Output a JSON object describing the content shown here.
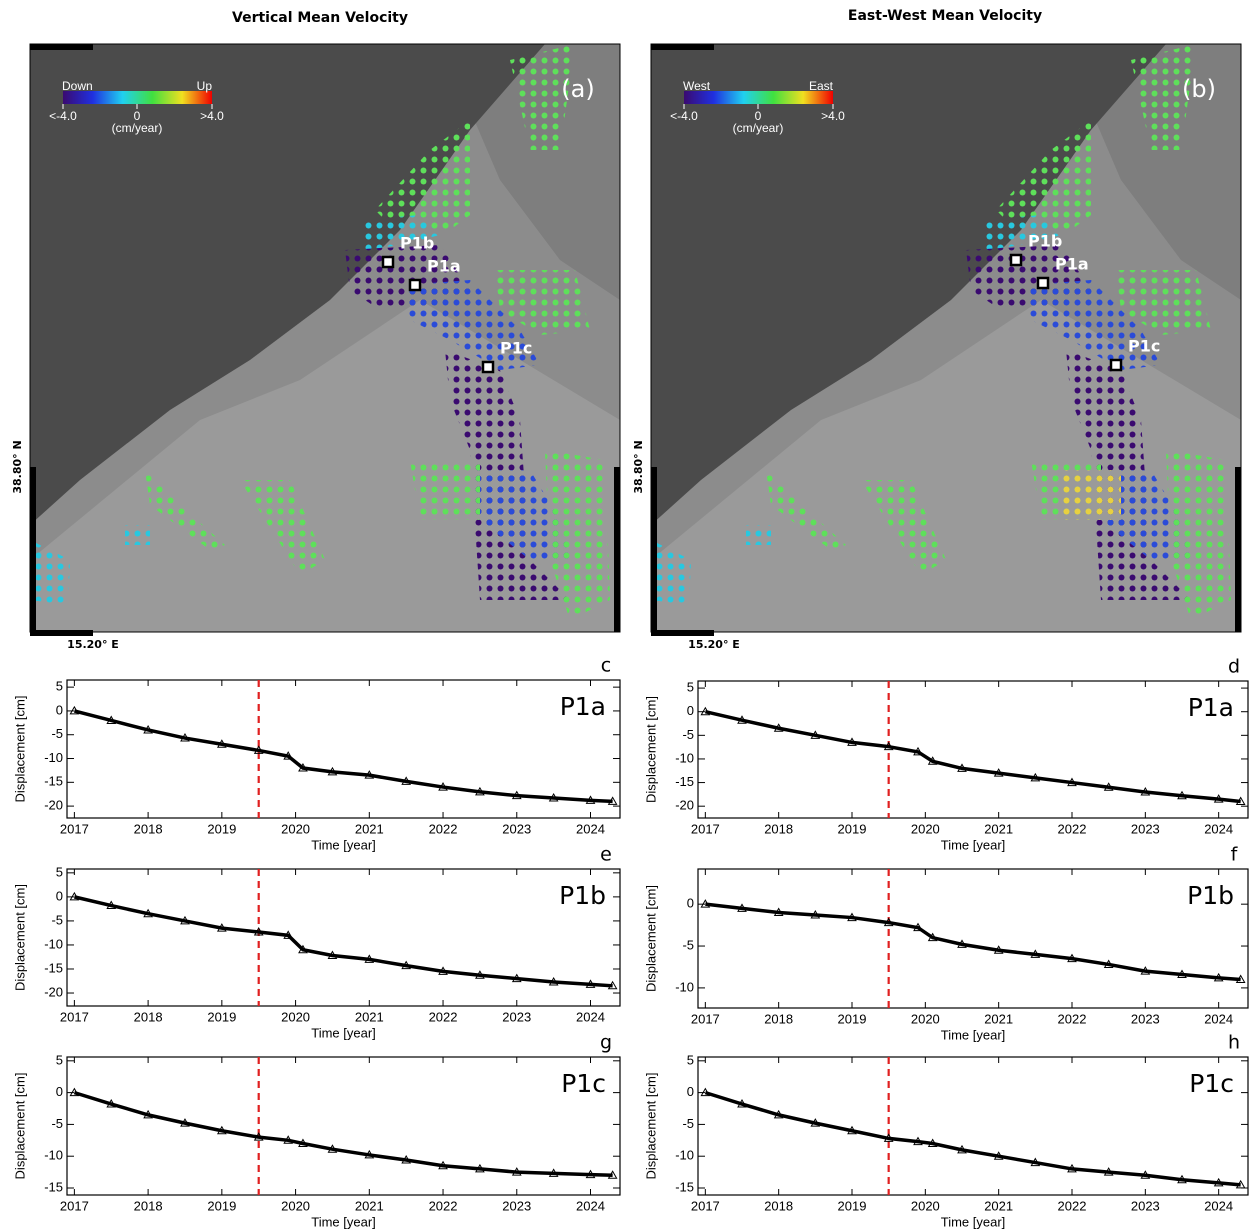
{
  "chart_data": [
    {
      "type": "map",
      "title": "Vertical Mean Velocity",
      "panel": "(a)",
      "colorbar": {
        "low": "Down",
        "high": "Up",
        "ticks": [
          "<-4.0",
          "0",
          ">4.0"
        ],
        "unit": "(cm/year)",
        "colors": [
          "#3a0a70",
          "#2030e0",
          "#20d0f0",
          "#40e040",
          "#f0e020",
          "#f00000"
        ]
      },
      "points": [
        "P1b",
        "P1a",
        "P1c"
      ],
      "lat_label": "38.80° N",
      "lon_label": "15.20° E"
    },
    {
      "type": "map",
      "title": "East-West Mean Velocity",
      "panel": "(b)",
      "colorbar": {
        "low": "West",
        "high": "East",
        "ticks": [
          "<-4.0",
          "0",
          ">4.0"
        ],
        "unit": "(cm/year)",
        "colors": [
          "#3a0a70",
          "#2030e0",
          "#20d0f0",
          "#40e040",
          "#f0e020",
          "#f00000"
        ]
      },
      "points": [
        "P1b",
        "P1a",
        "P1c"
      ],
      "lat_label": "38.80° N",
      "lon_label": "15.20° E"
    },
    {
      "type": "line",
      "panel": "c",
      "label": "P1a",
      "xlabel": "Time [year]",
      "ylabel": "Displacement [cm]",
      "x": [
        2017,
        2017.5,
        2018,
        2018.5,
        2019,
        2019.5,
        2019.9,
        2020.1,
        2020.5,
        2021,
        2021.5,
        2022,
        2022.5,
        2023,
        2023.5,
        2024,
        2024.3
      ],
      "values": [
        0,
        -2,
        -4,
        -5.7,
        -7,
        -8.3,
        -9.5,
        -12,
        -12.8,
        -13.5,
        -14.8,
        -16,
        -17,
        -17.8,
        -18.3,
        -18.8,
        -19
      ],
      "color": "#000000",
      "xlim": [
        2016.9,
        2024.4
      ],
      "xticks": [
        2017,
        2018,
        2019,
        2020,
        2021,
        2022,
        2023,
        2024
      ],
      "ylim": [
        -22.5,
        6.5
      ],
      "yticks": [
        5,
        0,
        -5,
        -10,
        -15,
        -20
      ],
      "vline": 2019.5,
      "vline_color": "#e02020"
    },
    {
      "type": "line",
      "panel": "d",
      "label": "P1a",
      "xlabel": "Time [year]",
      "ylabel": "Displacement [cm]",
      "x": [
        2017,
        2017.5,
        2018,
        2018.5,
        2019,
        2019.5,
        2019.9,
        2020.1,
        2020.5,
        2021,
        2021.5,
        2022,
        2022.5,
        2023,
        2023.5,
        2024,
        2024.3
      ],
      "values": [
        0,
        -1.8,
        -3.5,
        -5,
        -6.5,
        -7.4,
        -8.5,
        -10.5,
        -12,
        -13,
        -14,
        -15,
        -16,
        -17,
        -17.8,
        -18.5,
        -19
      ],
      "color": "#000000",
      "xlim": [
        2016.9,
        2024.4
      ],
      "xticks": [
        2017,
        2018,
        2019,
        2020,
        2021,
        2022,
        2023,
        2024
      ],
      "ylim": [
        -22.5,
        6.5
      ],
      "yticks": [
        5,
        0,
        -5,
        -10,
        -15,
        -20
      ],
      "vline": 2019.5,
      "vline_color": "#e02020"
    },
    {
      "type": "line",
      "panel": "e",
      "label": "P1b",
      "xlabel": "Time [year]",
      "ylabel": "Displacement [cm]",
      "x": [
        2017,
        2017.5,
        2018,
        2018.5,
        2019,
        2019.5,
        2019.9,
        2020.1,
        2020.5,
        2021,
        2021.5,
        2022,
        2022.5,
        2023,
        2023.5,
        2024,
        2024.3
      ],
      "values": [
        0,
        -1.8,
        -3.5,
        -5,
        -6.5,
        -7.3,
        -8,
        -11,
        -12.2,
        -13,
        -14.3,
        -15.5,
        -16.3,
        -17,
        -17.7,
        -18.2,
        -18.5
      ],
      "color": "#000000",
      "xlim": [
        2016.9,
        2024.4
      ],
      "xticks": [
        2017,
        2018,
        2019,
        2020,
        2021,
        2022,
        2023,
        2024
      ],
      "ylim": [
        -22.7,
        5.8
      ],
      "yticks": [
        5,
        0,
        -5,
        -10,
        -15,
        -20
      ],
      "vline": 2019.5,
      "vline_color": "#e02020"
    },
    {
      "type": "line",
      "panel": "f",
      "label": "P1b",
      "xlabel": "Time [year]",
      "ylabel": "Displacement [cm]",
      "x": [
        2017,
        2017.5,
        2018,
        2018.5,
        2019,
        2019.5,
        2019.9,
        2020.1,
        2020.5,
        2021,
        2021.5,
        2022,
        2022.5,
        2023,
        2023.5,
        2024,
        2024.3
      ],
      "values": [
        0,
        -0.5,
        -1,
        -1.3,
        -1.6,
        -2.2,
        -2.8,
        -4,
        -4.8,
        -5.5,
        -6,
        -6.5,
        -7.2,
        -8,
        -8.4,
        -8.8,
        -9
      ],
      "color": "#000000",
      "xlim": [
        2016.9,
        2024.4
      ],
      "xticks": [
        2017,
        2018,
        2019,
        2020,
        2021,
        2022,
        2023,
        2024
      ],
      "ylim": [
        -12.4,
        4.2
      ],
      "yticks": [
        0,
        -5,
        -10
      ],
      "vline": 2019.5,
      "vline_color": "#e02020"
    },
    {
      "type": "line",
      "panel": "g",
      "label": "P1c",
      "xlabel": "Time [year]",
      "ylabel": "Displacement [cm]",
      "x": [
        2017,
        2017.5,
        2018,
        2018.5,
        2019,
        2019.5,
        2019.9,
        2020.1,
        2020.5,
        2021,
        2021.5,
        2022,
        2022.5,
        2023,
        2023.5,
        2024,
        2024.3
      ],
      "values": [
        0,
        -1.8,
        -3.5,
        -4.8,
        -6,
        -7,
        -7.5,
        -8,
        -8.9,
        -9.8,
        -10.6,
        -11.5,
        -12,
        -12.5,
        -12.7,
        -12.9,
        -13
      ],
      "color": "#000000",
      "xlim": [
        2016.9,
        2024.4
      ],
      "xticks": [
        2017,
        2018,
        2019,
        2020,
        2021,
        2022,
        2023,
        2024
      ],
      "ylim": [
        -16.1,
        5.6
      ],
      "yticks": [
        5,
        0,
        -5,
        -10,
        -15
      ],
      "vline": 2019.5,
      "vline_color": "#e02020"
    },
    {
      "type": "line",
      "panel": "h",
      "label": "P1c",
      "xlabel": "Time [year]",
      "ylabel": "Displacement [cm]",
      "x": [
        2017,
        2017.5,
        2018,
        2018.5,
        2019,
        2019.5,
        2019.9,
        2020.1,
        2020.5,
        2021,
        2021.5,
        2022,
        2022.5,
        2023,
        2023.5,
        2024,
        2024.3
      ],
      "values": [
        0,
        -1.8,
        -3.5,
        -4.8,
        -6,
        -7.2,
        -7.7,
        -8,
        -9,
        -10,
        -11,
        -12,
        -12.5,
        -13,
        -13.7,
        -14.2,
        -14.5
      ],
      "color": "#000000",
      "xlim": [
        2016.9,
        2024.4
      ],
      "xticks": [
        2017,
        2018,
        2019,
        2020,
        2021,
        2022,
        2023,
        2024
      ],
      "ylim": [
        -16.1,
        5.6
      ],
      "yticks": [
        5,
        0,
        -5,
        -10,
        -15
      ],
      "vline": 2019.5,
      "vline_color": "#e02020"
    }
  ]
}
